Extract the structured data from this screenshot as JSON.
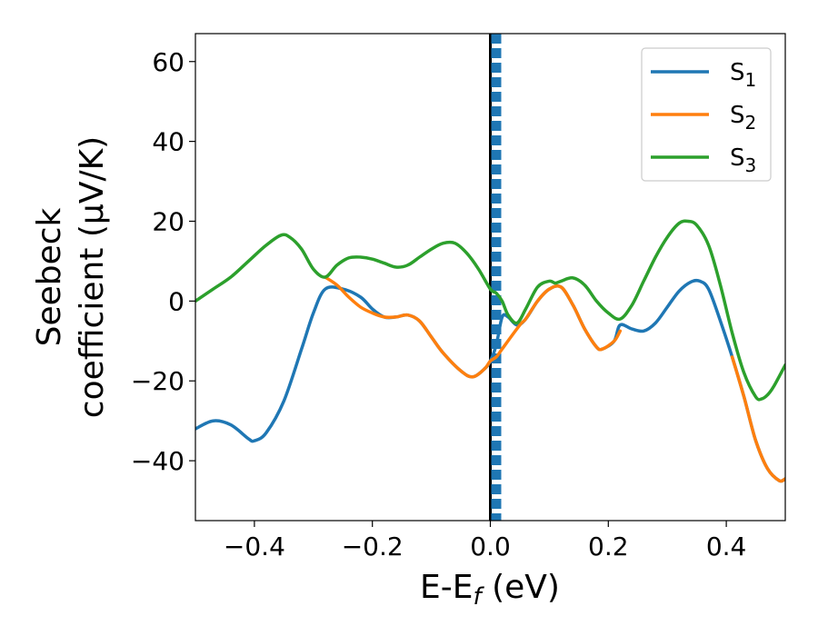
{
  "chart_data": {
    "type": "line",
    "xlabel": "E-E",
    "xlabel_sub": "f",
    "xlabel_unit": " (eV)",
    "ylabel_line1": "Seebeck",
    "ylabel_line2": "coefficient  (μV/K)",
    "xlim": [
      -0.5,
      0.5
    ],
    "ylim": [
      -55,
      67
    ],
    "xticks": [
      -0.4,
      -0.2,
      0.0,
      0.2,
      0.4
    ],
    "xtick_labels": [
      "−0.4",
      "−0.2",
      "0.0",
      "0.2",
      "0.4"
    ],
    "yticks": [
      -40,
      -20,
      0,
      20,
      40,
      60
    ],
    "ytick_labels": [
      "−40",
      "−20",
      "0",
      "20",
      "40",
      "60"
    ],
    "grid": false,
    "legend_position": "top-right",
    "vertical_lines": [
      {
        "x": 0.0,
        "style": "solid",
        "color": "#000000"
      },
      {
        "x": 0.01,
        "style": "dashed",
        "color": "#1f77b4"
      }
    ],
    "series": [
      {
        "name": "S",
        "sub": "1",
        "color": "#1f77b4",
        "points": [
          [
            -0.5,
            -32
          ],
          [
            -0.47,
            -30
          ],
          [
            -0.44,
            -31
          ],
          [
            -0.41,
            -34.5
          ],
          [
            -0.4,
            -35
          ],
          [
            -0.38,
            -33
          ],
          [
            -0.35,
            -25
          ],
          [
            -0.32,
            -12
          ],
          [
            -0.3,
            -3
          ],
          [
            -0.28,
            3
          ],
          [
            -0.25,
            3
          ],
          [
            -0.22,
            1
          ],
          [
            -0.2,
            -2
          ],
          [
            -0.18,
            -4
          ],
          [
            -0.16,
            -4
          ],
          [
            -0.14,
            -3.5
          ],
          [
            -0.12,
            -5
          ],
          [
            -0.1,
            -9
          ],
          [
            -0.08,
            -13
          ],
          [
            -0.05,
            -17.5
          ],
          [
            -0.03,
            -19
          ],
          [
            -0.01,
            -17
          ],
          [
            0.0,
            -15
          ],
          [
            0.01,
            -11
          ],
          [
            0.02,
            -4
          ],
          [
            0.03,
            -4
          ],
          [
            0.045,
            -6
          ],
          [
            0.06,
            -4.5
          ],
          [
            0.08,
            0
          ],
          [
            0.1,
            3
          ],
          [
            0.12,
            3.5
          ],
          [
            0.14,
            -1
          ],
          [
            0.16,
            -7
          ],
          [
            0.18,
            -11.5
          ],
          [
            0.19,
            -12
          ],
          [
            0.21,
            -10
          ],
          [
            0.22,
            -6
          ],
          [
            0.24,
            -7
          ],
          [
            0.26,
            -7.5
          ],
          [
            0.28,
            -5.5
          ],
          [
            0.3,
            -1.5
          ],
          [
            0.32,
            2.5
          ],
          [
            0.34,
            4.8
          ],
          [
            0.355,
            5
          ],
          [
            0.37,
            3
          ],
          [
            0.39,
            -5
          ],
          [
            0.41,
            -14
          ],
          [
            0.43,
            -24
          ],
          [
            0.45,
            -35
          ],
          [
            0.47,
            -42
          ],
          [
            0.49,
            -45
          ],
          [
            0.5,
            -44.5
          ]
        ]
      },
      {
        "name": "S",
        "sub": "2",
        "color": "#ff7f0e",
        "points": [
          [
            -0.28,
            6
          ],
          [
            -0.26,
            4
          ],
          [
            -0.24,
            1
          ],
          [
            -0.22,
            -1.5
          ],
          [
            -0.2,
            -3
          ],
          [
            -0.18,
            -4
          ],
          [
            -0.16,
            -4
          ],
          [
            -0.14,
            -3.5
          ],
          [
            -0.12,
            -5
          ],
          [
            -0.1,
            -9
          ],
          [
            -0.08,
            -13
          ],
          [
            -0.05,
            -17.5
          ],
          [
            -0.03,
            -19
          ],
          [
            -0.01,
            -17
          ],
          [
            0.0,
            -15
          ],
          [
            0.01,
            -14
          ],
          [
            0.02,
            -12
          ],
          [
            0.05,
            -6
          ],
          [
            0.06,
            -4.5
          ],
          [
            0.08,
            0
          ],
          [
            0.1,
            3
          ],
          [
            0.12,
            3.5
          ],
          [
            0.14,
            -1
          ],
          [
            0.16,
            -7
          ],
          [
            0.18,
            -11.5
          ],
          [
            0.19,
            -12
          ],
          [
            0.21,
            -10
          ],
          [
            0.22,
            -7.5
          ],
          [
            0.41,
            -14
          ],
          [
            0.43,
            -24
          ],
          [
            0.45,
            -35
          ],
          [
            0.47,
            -42
          ],
          [
            0.49,
            -45
          ],
          [
            0.5,
            -44.5
          ]
        ]
      },
      {
        "name": "S",
        "sub": "3",
        "color": "#2ca02c",
        "points": [
          [
            -0.5,
            0
          ],
          [
            -0.47,
            3
          ],
          [
            -0.44,
            6
          ],
          [
            -0.41,
            10
          ],
          [
            -0.38,
            14
          ],
          [
            -0.355,
            16.5
          ],
          [
            -0.34,
            16
          ],
          [
            -0.32,
            13
          ],
          [
            -0.3,
            8
          ],
          [
            -0.28,
            6
          ],
          [
            -0.26,
            9
          ],
          [
            -0.24,
            10.8
          ],
          [
            -0.22,
            11
          ],
          [
            -0.2,
            10.5
          ],
          [
            -0.18,
            9.5
          ],
          [
            -0.16,
            8.5
          ],
          [
            -0.14,
            9
          ],
          [
            -0.12,
            11
          ],
          [
            -0.1,
            13
          ],
          [
            -0.08,
            14.5
          ],
          [
            -0.06,
            14.5
          ],
          [
            -0.04,
            12
          ],
          [
            -0.02,
            8
          ],
          [
            0.0,
            3
          ],
          [
            0.01,
            2
          ],
          [
            0.02,
            0
          ],
          [
            0.03,
            -3.5
          ],
          [
            0.045,
            -5.5
          ],
          [
            0.06,
            -2
          ],
          [
            0.08,
            3.5
          ],
          [
            0.1,
            5
          ],
          [
            0.11,
            4.5
          ],
          [
            0.12,
            5
          ],
          [
            0.14,
            5.8
          ],
          [
            0.16,
            4
          ],
          [
            0.18,
            0
          ],
          [
            0.2,
            -3
          ],
          [
            0.22,
            -4.5
          ],
          [
            0.24,
            -1
          ],
          [
            0.26,
            5
          ],
          [
            0.28,
            11
          ],
          [
            0.3,
            16
          ],
          [
            0.32,
            19.5
          ],
          [
            0.335,
            20
          ],
          [
            0.35,
            19
          ],
          [
            0.37,
            14
          ],
          [
            0.39,
            4
          ],
          [
            0.41,
            -8
          ],
          [
            0.43,
            -18
          ],
          [
            0.45,
            -24
          ],
          [
            0.46,
            -24.5
          ],
          [
            0.47,
            -23.5
          ],
          [
            0.48,
            -21.5
          ],
          [
            0.5,
            -16
          ]
        ]
      }
    ]
  }
}
